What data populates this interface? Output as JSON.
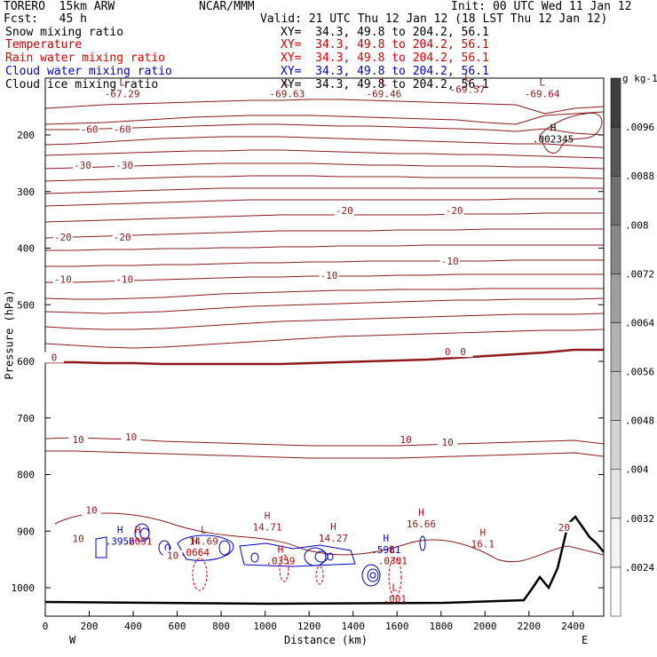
{
  "header": {
    "model": "TORERO  15km ARW",
    "center": "NCAR/MMM",
    "init": "Init: 00 UTC Wed 11 Jan 12",
    "fcst": "Fcst:   45 h",
    "valid": "Valid: 21 UTC Thu 12 Jan 12 (18 LST Thu 12 Jan 12)"
  },
  "legend": [
    {
      "name": "Snow mixing ratio",
      "xy": "XY=  34.3, 49.8 to 204.2, 56.1",
      "color": "#000000"
    },
    {
      "name": "Temperature",
      "xy": "XY=  34.3, 49.8 to 204.2, 56.1",
      "color": "#c00000"
    },
    {
      "name": "Rain water mixing ratio",
      "xy": "XY=  34.3, 49.8 to 204.2, 56.1",
      "color": "#e00000"
    },
    {
      "name": "Cloud water mixing ratio",
      "xy": "XY=  34.3, 49.8 to 204.2, 56.1",
      "color": "#0000c0"
    },
    {
      "name": "Cloud ice mixing ratio",
      "xy": "XY=  34.3, 49.8 to 204.2, 56.1",
      "color": "#000000"
    }
  ],
  "chart_data": {
    "type": "cross-section contour",
    "xlabel": "Distance (km)",
    "ylabel": "Pressure (hPa)",
    "xlim": [
      0,
      2540
    ],
    "ylim": [
      1050,
      100
    ],
    "x_ticks": [
      0,
      200,
      400,
      600,
      800,
      1000,
      1200,
      1400,
      1600,
      1800,
      2000,
      2200,
      2400
    ],
    "y_ticks": [
      200,
      300,
      400,
      500,
      600,
      700,
      800,
      900,
      1000
    ],
    "left_end": "W",
    "right_end": "E",
    "temperature_contour_labels": [
      {
        "x": 200,
        "p": 190,
        "text": "-60"
      },
      {
        "x": 350,
        "p": 190,
        "text": "-60"
      },
      {
        "x": 170,
        "p": 253,
        "text": "-30"
      },
      {
        "x": 360,
        "p": 253,
        "text": "-30"
      },
      {
        "x": 80,
        "p": 380,
        "text": "-20"
      },
      {
        "x": 350,
        "p": 380,
        "text": "-20"
      },
      {
        "x": 1360,
        "p": 333,
        "text": "-20"
      },
      {
        "x": 1860,
        "p": 333,
        "text": "-20"
      },
      {
        "x": 80,
        "p": 455,
        "text": "-10"
      },
      {
        "x": 360,
        "p": 455,
        "text": "-10"
      },
      {
        "x": 1290,
        "p": 448,
        "text": "-10"
      },
      {
        "x": 1840,
        "p": 423,
        "text": "-10"
      },
      {
        "x": 40,
        "p": 593,
        "text": "0"
      },
      {
        "x": 1830,
        "p": 583,
        "text": "0"
      },
      {
        "x": 1900,
        "p": 583,
        "text": "0"
      },
      {
        "x": 150,
        "p": 738,
        "text": "10"
      },
      {
        "x": 390,
        "p": 733,
        "text": "10"
      },
      {
        "x": 1640,
        "p": 738,
        "text": "10"
      },
      {
        "x": 1830,
        "p": 743,
        "text": "10"
      },
      {
        "x": 210,
        "p": 863,
        "text": "10"
      },
      {
        "x": 150,
        "p": 913,
        "text": "10"
      },
      {
        "x": 580,
        "p": 943,
        "text": "10"
      },
      {
        "x": 2360,
        "p": 893,
        "text": "20"
      }
    ],
    "extrema": [
      {
        "type": "L",
        "x": 350,
        "p": 118,
        "label": "-67.29",
        "color": "#8b1a1a"
      },
      {
        "type": "L",
        "x": 1100,
        "p": 118,
        "label": "-69.63",
        "color": "#8b1a1a"
      },
      {
        "type": "L",
        "x": 1540,
        "p": 118,
        "label": "-69.46",
        "color": "#8b1a1a"
      },
      {
        "type": "L",
        "x": 1920,
        "p": 110,
        "label": "-69.57",
        "color": "#8b1a1a"
      },
      {
        "type": "L",
        "x": 2260,
        "p": 118,
        "label": "-69.64",
        "color": "#8b1a1a"
      },
      {
        "type": "H",
        "x": 2310,
        "p": 198,
        "label": ".002345",
        "color": "#000000"
      },
      {
        "type": "H",
        "x": 1010,
        "p": 883,
        "label": "14.71",
        "color": "#8b1a1a"
      },
      {
        "type": "H",
        "x": 1310,
        "p": 903,
        "label": "14.27",
        "color": "#8b1a1a"
      },
      {
        "type": "H",
        "x": 1710,
        "p": 878,
        "label": "16.66",
        "color": "#8b1a1a"
      },
      {
        "type": "H",
        "x": 1990,
        "p": 913,
        "label": "16.1",
        "color": "#8b1a1a"
      },
      {
        "type": "L",
        "x": 720,
        "p": 908,
        "label": "14.69",
        "color": "#8b1a1a"
      },
      {
        "type": "H",
        "x": 340,
        "p": 908,
        "label": ".3956",
        "color": "#0000c0"
      },
      {
        "type": "H",
        "x": 420,
        "p": 908,
        "label": ".2051",
        "color": "#c00000"
      },
      {
        "type": "H",
        "x": 680,
        "p": 928,
        "label": ".0664",
        "color": "#c00000"
      },
      {
        "type": "H",
        "x": 1070,
        "p": 943,
        "label": ".0359",
        "color": "#c00000"
      },
      {
        "type": "H",
        "x": 1550,
        "p": 923,
        "label": ".5981",
        "color": "#0000c0"
      },
      {
        "type": "L",
        "x": 1580,
        "p": 943,
        "label": ".0301",
        "color": "#c00000"
      },
      {
        "type": "L",
        "x": 1590,
        "p": 1010,
        "label": ".001",
        "color": "#c00000"
      }
    ],
    "colorbar": {
      "unit": "g kg-1",
      "ticks": [
        ".0024",
        ".0032",
        ".004",
        ".0048",
        ".0056",
        ".0064",
        ".0072",
        ".008",
        ".0088",
        ".0096"
      ],
      "colors": [
        "#ffffff",
        "#f2f2f2",
        "#e4e4e4",
        "#d4d4d4",
        "#c4c4c4",
        "#b2b2b2",
        "#9e9e9e",
        "#888888",
        "#707070",
        "#575757",
        "#3e3e3e"
      ]
    }
  }
}
